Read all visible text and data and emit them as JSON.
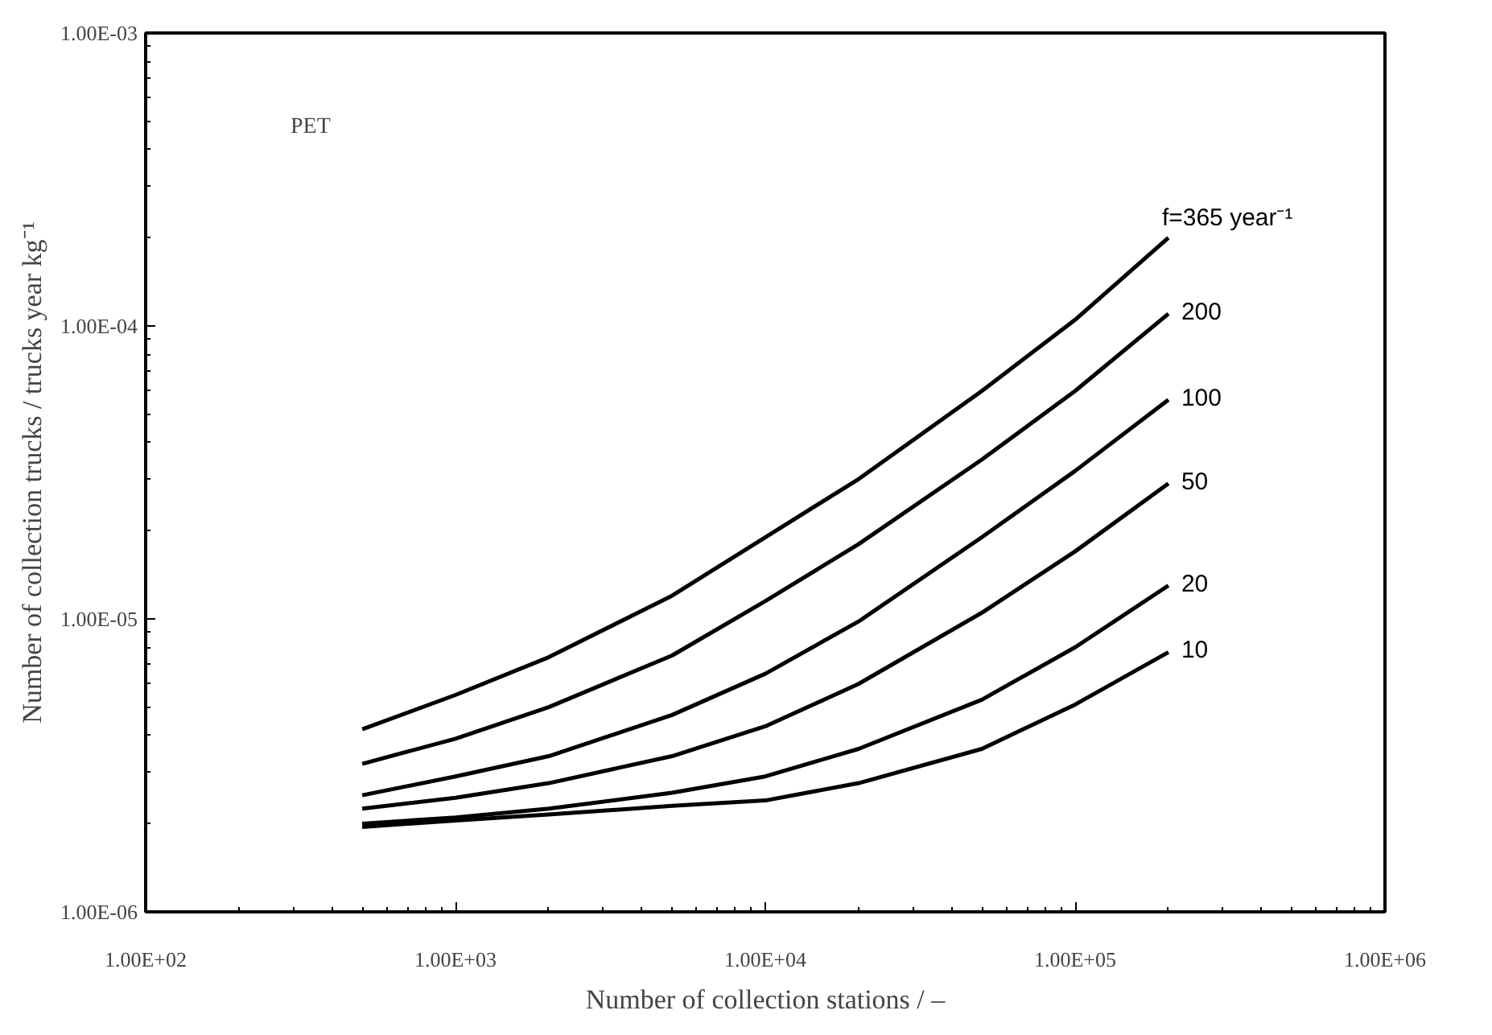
{
  "chart_data": {
    "type": "line",
    "xlabel": "Number of collection stations / –",
    "ylabel": "Number of collection trucks / trucks year kg⁻¹",
    "log": "xy",
    "grid": false,
    "marker": "none",
    "line_style": "solid",
    "annotations": [
      "PET"
    ],
    "x": [
      500,
      1000,
      2000,
      5000,
      10000,
      20000,
      50000,
      100000,
      200000
    ],
    "xlim": [
      100,
      1000000
    ],
    "ylim": [
      1e-06,
      0.001
    ],
    "xticks": [
      {
        "value": 100,
        "label": "1.00E+02"
      },
      {
        "value": 1000,
        "label": "1.00E+03"
      },
      {
        "value": 10000,
        "label": "1.00E+04"
      },
      {
        "value": 100000,
        "label": "1.00E+05"
      },
      {
        "value": 1000000,
        "label": "1.00E+06"
      }
    ],
    "yticks": [
      {
        "value": 1e-06,
        "label": "1.00E-06"
      },
      {
        "value": 1e-05,
        "label": "1.00E-05"
      },
      {
        "value": 0.0001,
        "label": "1.00E-04"
      },
      {
        "value": 0.001,
        "label": "1.00E-03"
      }
    ],
    "series": [
      {
        "name": "f=365  year⁻¹",
        "color": "#000000",
        "values": [
          4.2e-06,
          5.5e-06,
          7.4e-06,
          1.2e-05,
          1.9e-05,
          3e-05,
          6e-05,
          0.000105,
          0.0002
        ]
      },
      {
        "name": "200",
        "color": "#000000",
        "values": [
          3.2e-06,
          3.9e-06,
          5e-06,
          7.5e-06,
          1.15e-05,
          1.8e-05,
          3.5e-05,
          6e-05,
          0.00011
        ]
      },
      {
        "name": "100",
        "color": "#000000",
        "values": [
          2.5e-06,
          2.9e-06,
          3.4e-06,
          4.7e-06,
          6.5e-06,
          9.8e-06,
          1.9e-05,
          3.2e-05,
          5.6e-05
        ]
      },
      {
        "name": "50",
        "color": "#000000",
        "values": [
          2.25e-06,
          2.45e-06,
          2.75e-06,
          3.4e-06,
          4.3e-06,
          6e-06,
          1.05e-05,
          1.7e-05,
          2.9e-05
        ]
      },
      {
        "name": "20",
        "color": "#000000",
        "values": [
          2e-06,
          2.1e-06,
          2.25e-06,
          2.55e-06,
          2.9e-06,
          3.6e-06,
          5.3e-06,
          8e-06,
          1.3e-05
        ]
      },
      {
        "name": "10",
        "color": "#000000",
        "values": [
          1.95e-06,
          2.05e-06,
          2.15e-06,
          2.3e-06,
          2.4e-06,
          2.75e-06,
          3.6e-06,
          5.1e-06,
          7.7e-06
        ]
      }
    ]
  }
}
